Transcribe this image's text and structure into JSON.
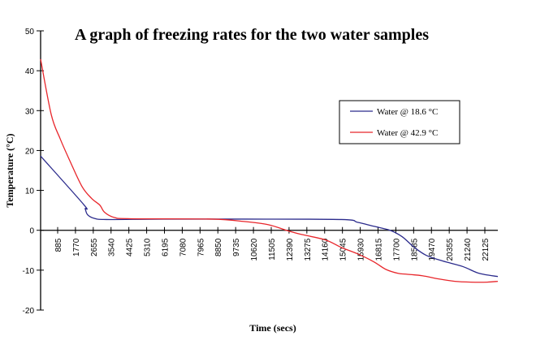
{
  "chart_data": {
    "type": "line",
    "title": "A graph of freezing rates for the two water samples",
    "xlabel": "Time (secs)",
    "ylabel": "Temperature (°C)",
    "xlim": [
      0,
      22780
    ],
    "ylim": [
      -20,
      50
    ],
    "y_ticks": [
      50,
      40,
      30,
      20,
      10,
      0,
      -10,
      -20
    ],
    "x_tick_labels": [
      "885",
      "1770",
      "2655",
      "3540",
      "4425",
      "5310",
      "6195",
      "7080",
      "7965",
      "8850",
      "9735",
      "10620",
      "11505",
      "12390",
      "13275",
      "14160",
      "15045",
      "15930",
      "16815",
      "17700",
      "18585",
      "19470",
      "20355",
      "21240",
      "22125"
    ],
    "grid": false,
    "legend_position": "right",
    "series": [
      {
        "name": "Water @ 18.6 °C",
        "color": "#2b2b8c",
        "x": [
          0,
          2140,
          2220,
          2340,
          2670,
          3270,
          6100,
          10140,
          14980,
          15790,
          16600,
          17410,
          18010,
          18620,
          19220,
          20030,
          21040,
          21850,
          22780
        ],
        "y": [
          18.6,
          6.5,
          5.4,
          3.9,
          3.0,
          2.7,
          2.8,
          2.8,
          2.7,
          2.0,
          1.0,
          0,
          -1.6,
          -4.3,
          -6.3,
          -7.7,
          -9.1,
          -10.8,
          -11.6
        ]
      },
      {
        "name": "Water @ 42.9 °C",
        "color": "#e8262b",
        "x": [
          0,
          530,
          970,
          1450,
          2060,
          2540,
          2950,
          3190,
          3680,
          4480,
          8520,
          10140,
          11350,
          12240,
          12960,
          14180,
          14980,
          15790,
          16600,
          17200,
          17810,
          18210,
          19020,
          19830,
          20640,
          21450,
          22250,
          22780
        ],
        "y": [
          42.9,
          29,
          23,
          17.5,
          11,
          8,
          6.3,
          4.5,
          3.2,
          2.9,
          2.8,
          2.2,
          1.4,
          0,
          -1,
          -2.4,
          -4.3,
          -5.9,
          -7.9,
          -9.8,
          -10.8,
          -11,
          -11.4,
          -12.2,
          -12.8,
          -13,
          -13,
          -12.8
        ]
      }
    ]
  }
}
